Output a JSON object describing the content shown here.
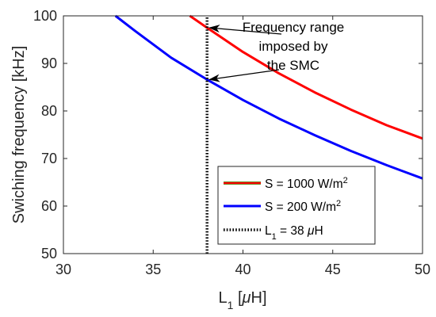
{
  "chart_data": {
    "type": "line",
    "title": "",
    "xlabel": {
      "main": "L",
      "sub": "1",
      "unit_open": " [",
      "mu": "μ",
      "unit_close": "H]"
    },
    "ylabel": "Swiching frequency [kHz]",
    "xlim": [
      30,
      50
    ],
    "ylim": [
      50,
      100
    ],
    "xticks": [
      "30",
      "35",
      "40",
      "45",
      "50"
    ],
    "yticks": [
      "50",
      "60",
      "70",
      "80",
      "90",
      "100"
    ],
    "grid": false,
    "legend_position": "lower-right",
    "series": [
      {
        "name": "S = 1000 W/m",
        "name_sup": "2",
        "color": "#ff0000",
        "edge_color": "#6b8e23",
        "style": "solid",
        "x": [
          37.04,
          38,
          40,
          42,
          44,
          46,
          48,
          50
        ],
        "y": [
          100,
          97.5,
          92.4,
          87.9,
          83.9,
          80.3,
          77.0,
          74.2
        ]
      },
      {
        "name": "S = 200 W/m",
        "name_sup": "2",
        "color": "#0000ff",
        "style": "solid",
        "x": [
          32.9,
          34,
          36,
          38,
          40,
          42,
          44,
          46,
          48,
          50
        ],
        "y": [
          100,
          96.8,
          91.2,
          86.6,
          82.3,
          78.4,
          74.9,
          71.6,
          68.6,
          65.8
        ]
      },
      {
        "name": "L",
        "name_sub": "1",
        "name_rest": " = 38 ",
        "name_mu": "μ",
        "name_unit": "H",
        "color": "#000000",
        "style": "dotted",
        "x": [
          38,
          38
        ],
        "y": [
          50,
          100
        ]
      }
    ],
    "annotation": {
      "lines": [
        "Frequency range",
        "imposed by",
        "the SMC"
      ],
      "arrow_targets": [
        {
          "x": 38,
          "y": 97.5
        },
        {
          "x": 38,
          "y": 86.6
        }
      ]
    }
  }
}
